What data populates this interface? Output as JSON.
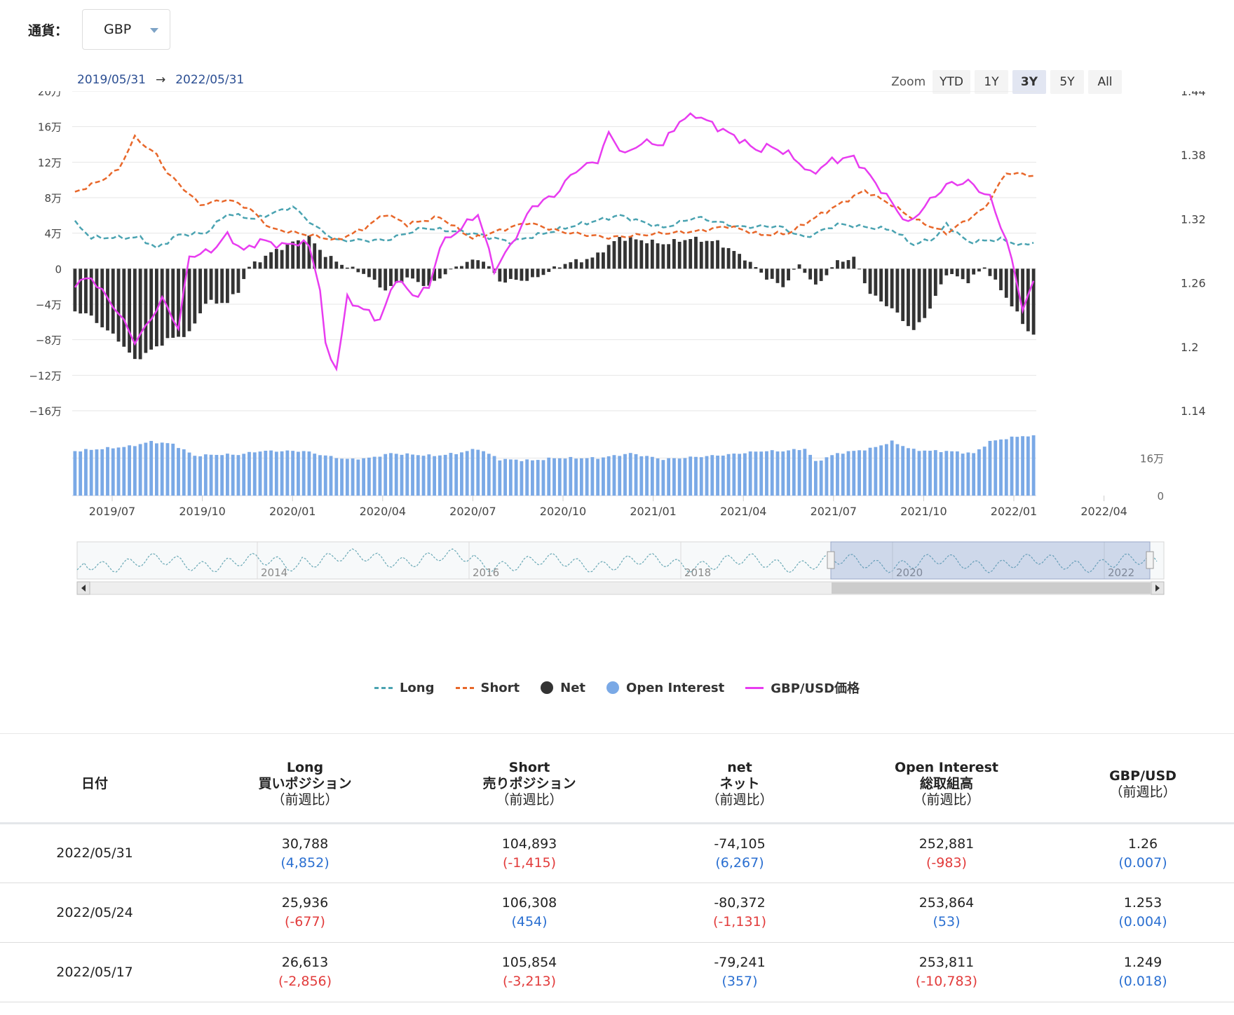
{
  "currency": {
    "label": "通貨：",
    "value": "GBP"
  },
  "range": {
    "from": "2019/05/31",
    "arrow": "→",
    "to": "2022/05/31"
  },
  "zoom": {
    "label": "Zoom",
    "buttons": [
      "YTD",
      "1Y",
      "3Y",
      "5Y",
      "All"
    ],
    "active": "3Y"
  },
  "colors": {
    "long": "#4aa3b1",
    "short": "#e8672a",
    "net": "#333333",
    "oi": "#7aa9e6",
    "price": "#e83cf0"
  },
  "navigator": {
    "years": [
      "2014",
      "2016",
      "2018",
      "2020",
      "2022"
    ]
  },
  "legend": {
    "long": "Long",
    "short": "Short",
    "net": "Net",
    "oi": "Open Interest",
    "price": "GBP/USD価格"
  },
  "chart_data": {
    "type": "line",
    "x_labels": [
      "2019/07",
      "2019/10",
      "2020/01",
      "2020/04",
      "2020/07",
      "2020/10",
      "2021/01",
      "2021/04",
      "2021/07",
      "2021/10",
      "2022/01",
      "2022/04"
    ],
    "left_axis_labels": [
      "20万",
      "16万",
      "12万",
      "8万",
      "4万",
      "0",
      "−4万",
      "−8万",
      "−12万",
      "−16万"
    ],
    "right_axis_labels": [
      "1.44",
      "1.38",
      "1.32",
      "1.26",
      "1.2",
      "1.14"
    ],
    "oi_axis_labels": [
      "16万",
      "0"
    ],
    "ylim_left": [
      -160000,
      200000
    ],
    "ylim_right": [
      1.14,
      1.44
    ],
    "ylim_oi": [
      0,
      320000
    ],
    "long_keypoints": [
      [
        0,
        52000
      ],
      [
        3,
        35000
      ],
      [
        8,
        35000
      ],
      [
        12,
        35000
      ],
      [
        15,
        23000
      ],
      [
        19,
        38000
      ],
      [
        24,
        40000
      ],
      [
        28,
        62000
      ],
      [
        33,
        56000
      ],
      [
        40,
        70000
      ],
      [
        44,
        48000
      ],
      [
        48,
        32000
      ],
      [
        57,
        32000
      ],
      [
        64,
        46000
      ],
      [
        73,
        40000
      ],
      [
        80,
        30000
      ],
      [
        90,
        46000
      ],
      [
        100,
        60000
      ],
      [
        108,
        46000
      ],
      [
        114,
        58000
      ],
      [
        122,
        47000
      ],
      [
        129,
        48000
      ],
      [
        134,
        35000
      ],
      [
        140,
        50000
      ],
      [
        150,
        44000
      ],
      [
        154,
        27000
      ],
      [
        158,
        35000
      ],
      [
        160,
        50000
      ],
      [
        164,
        30000
      ],
      [
        170,
        33000
      ],
      [
        174,
        26000
      ],
      [
        176,
        30000
      ]
    ],
    "short_keypoints": [
      [
        0,
        86000
      ],
      [
        5,
        100000
      ],
      [
        8,
        112000
      ],
      [
        11,
        148000
      ],
      [
        15,
        128000
      ],
      [
        17,
        108000
      ],
      [
        23,
        72000
      ],
      [
        28,
        78000
      ],
      [
        32,
        68000
      ],
      [
        36,
        45000
      ],
      [
        43,
        38000
      ],
      [
        48,
        32000
      ],
      [
        53,
        45000
      ],
      [
        57,
        62000
      ],
      [
        61,
        50000
      ],
      [
        67,
        58000
      ],
      [
        73,
        34000
      ],
      [
        83,
        52000
      ],
      [
        89,
        42000
      ],
      [
        98,
        35000
      ],
      [
        108,
        40000
      ],
      [
        114,
        42000
      ],
      [
        120,
        48000
      ],
      [
        126,
        38000
      ],
      [
        131,
        40000
      ],
      [
        136,
        58000
      ],
      [
        145,
        88000
      ],
      [
        150,
        72000
      ],
      [
        154,
        56000
      ],
      [
        160,
        40000
      ],
      [
        167,
        68000
      ],
      [
        171,
        108000
      ],
      [
        176,
        105000
      ]
    ],
    "net_keypoints": [
      [
        0,
        -48000
      ],
      [
        2,
        -50000
      ],
      [
        8,
        -80000
      ],
      [
        11,
        -103000
      ],
      [
        14,
        -92000
      ],
      [
        17,
        -80000
      ],
      [
        21,
        -73000
      ],
      [
        24,
        -38000
      ],
      [
        28,
        -38000
      ],
      [
        30,
        -25000
      ],
      [
        32,
        2000
      ],
      [
        36,
        18000
      ],
      [
        40,
        30000
      ],
      [
        43,
        35000
      ],
      [
        46,
        15000
      ],
      [
        50,
        2000
      ],
      [
        53,
        -5000
      ],
      [
        57,
        -24000
      ],
      [
        61,
        -10000
      ],
      [
        65,
        -20000
      ],
      [
        68,
        -5000
      ],
      [
        72,
        8000
      ],
      [
        75,
        10000
      ],
      [
        78,
        -14000
      ],
      [
        84,
        -12000
      ],
      [
        90,
        6000
      ],
      [
        95,
        12000
      ],
      [
        100,
        35000
      ],
      [
        104,
        32000
      ],
      [
        108,
        28000
      ],
      [
        113,
        34000
      ],
      [
        118,
        30000
      ],
      [
        123,
        12000
      ],
      [
        127,
        -10000
      ],
      [
        130,
        -20000
      ],
      [
        133,
        5000
      ],
      [
        136,
        -20000
      ],
      [
        140,
        8000
      ],
      [
        143,
        12000
      ],
      [
        146,
        -28000
      ],
      [
        150,
        -45000
      ],
      [
        154,
        -70000
      ],
      [
        157,
        -45000
      ],
      [
        160,
        -5000
      ],
      [
        164,
        -14000
      ],
      [
        167,
        2000
      ],
      [
        171,
        -32000
      ],
      [
        175,
        -70000
      ],
      [
        176,
        -74105
      ]
    ],
    "oi_keypoints": [
      [
        0,
        190000
      ],
      [
        5,
        200000
      ],
      [
        10,
        210000
      ],
      [
        14,
        230000
      ],
      [
        18,
        220000
      ],
      [
        22,
        170000
      ],
      [
        26,
        175000
      ],
      [
        30,
        175000
      ],
      [
        34,
        190000
      ],
      [
        38,
        190000
      ],
      [
        42,
        190000
      ],
      [
        46,
        170000
      ],
      [
        50,
        155000
      ],
      [
        54,
        160000
      ],
      [
        58,
        180000
      ],
      [
        62,
        175000
      ],
      [
        66,
        170000
      ],
      [
        70,
        180000
      ],
      [
        74,
        200000
      ],
      [
        78,
        155000
      ],
      [
        84,
        150000
      ],
      [
        88,
        160000
      ],
      [
        96,
        160000
      ],
      [
        102,
        180000
      ],
      [
        108,
        155000
      ],
      [
        114,
        165000
      ],
      [
        120,
        175000
      ],
      [
        126,
        190000
      ],
      [
        130,
        190000
      ],
      [
        134,
        200000
      ],
      [
        136,
        145000
      ],
      [
        140,
        180000
      ],
      [
        146,
        200000
      ],
      [
        150,
        230000
      ],
      [
        154,
        195000
      ],
      [
        158,
        190000
      ],
      [
        160,
        190000
      ],
      [
        165,
        180000
      ],
      [
        168,
        230000
      ],
      [
        170,
        240000
      ],
      [
        174,
        255000
      ],
      [
        176,
        252881
      ]
    ],
    "price_keypoints": [
      [
        0,
        1.259
      ],
      [
        3,
        1.265
      ],
      [
        8,
        1.232
      ],
      [
        11,
        1.205
      ],
      [
        13,
        1.218
      ],
      [
        16,
        1.245
      ],
      [
        19,
        1.218
      ],
      [
        21,
        1.285
      ],
      [
        25,
        1.29
      ],
      [
        28,
        1.305
      ],
      [
        31,
        1.29
      ],
      [
        34,
        1.3
      ],
      [
        38,
        1.295
      ],
      [
        41,
        1.298
      ],
      [
        43,
        1.295
      ],
      [
        45,
        1.255
      ],
      [
        46,
        1.2
      ],
      [
        48,
        1.18
      ],
      [
        50,
        1.245
      ],
      [
        53,
        1.235
      ],
      [
        56,
        1.225
      ],
      [
        59,
        1.265
      ],
      [
        62,
        1.248
      ],
      [
        65,
        1.255
      ],
      [
        67,
        1.295
      ],
      [
        71,
        1.312
      ],
      [
        74,
        1.325
      ],
      [
        77,
        1.272
      ],
      [
        80,
        1.295
      ],
      [
        84,
        1.332
      ],
      [
        88,
        1.342
      ],
      [
        92,
        1.366
      ],
      [
        96,
        1.375
      ],
      [
        98,
        1.4
      ],
      [
        101,
        1.38
      ],
      [
        104,
        1.392
      ],
      [
        108,
        1.39
      ],
      [
        111,
        1.412
      ],
      [
        114,
        1.418
      ],
      [
        118,
        1.406
      ],
      [
        122,
        1.395
      ],
      [
        125,
        1.385
      ],
      [
        128,
        1.388
      ],
      [
        132,
        1.378
      ],
      [
        135,
        1.362
      ],
      [
        139,
        1.375
      ],
      [
        143,
        1.378
      ],
      [
        146,
        1.36
      ],
      [
        150,
        1.335
      ],
      [
        153,
        1.315
      ],
      [
        156,
        1.332
      ],
      [
        160,
        1.352
      ],
      [
        164,
        1.355
      ],
      [
        168,
        1.34
      ],
      [
        171,
        1.3
      ],
      [
        173,
        1.26
      ],
      [
        174,
        1.235
      ],
      [
        176,
        1.26
      ]
    ],
    "n_weeks": 177,
    "series": [
      {
        "name": "Long",
        "type": "line"
      },
      {
        "name": "Short",
        "type": "line"
      },
      {
        "name": "Net",
        "type": "bar"
      },
      {
        "name": "Open Interest",
        "type": "bar"
      },
      {
        "name": "GBP/USD価格",
        "type": "line"
      }
    ]
  },
  "table": {
    "headers": {
      "date": "日付",
      "long": {
        "line1": "Long",
        "line2": "買いポジション",
        "line3": "（前週比）"
      },
      "short": {
        "line1": "Short",
        "line2": "売りポジション",
        "line3": "（前週比）"
      },
      "net": {
        "line1": "net",
        "line2": "ネット",
        "line3": "（前週比）"
      },
      "oi": {
        "line1": "Open Interest",
        "line2": "総取組高",
        "line3": "（前週比）"
      },
      "price": {
        "line1": "GBP/USD",
        "line2": "（前週比）"
      }
    },
    "rows": [
      {
        "date": "2022/05/31",
        "long": "30,788",
        "long_chg": "(4,852)",
        "long_sign": "pos",
        "short": "104,893",
        "short_chg": "(-1,415)",
        "short_sign": "neg",
        "net": "-74,105",
        "net_chg": "(6,267)",
        "net_sign": "pos",
        "oi": "252,881",
        "oi_chg": "(-983)",
        "oi_sign": "neg",
        "price": "1.26",
        "price_chg": "(0.007)",
        "price_sign": "pos"
      },
      {
        "date": "2022/05/24",
        "long": "25,936",
        "long_chg": "(-677)",
        "long_sign": "neg",
        "short": "106,308",
        "short_chg": "(454)",
        "short_sign": "pos",
        "net": "-80,372",
        "net_chg": "(-1,131)",
        "net_sign": "neg",
        "oi": "253,864",
        "oi_chg": "(53)",
        "oi_sign": "pos",
        "price": "1.253",
        "price_chg": "(0.004)",
        "price_sign": "pos"
      },
      {
        "date": "2022/05/17",
        "long": "26,613",
        "long_chg": "(-2,856)",
        "long_sign": "neg",
        "short": "105,854",
        "short_chg": "(-3,213)",
        "short_sign": "neg",
        "net": "-79,241",
        "net_chg": "(357)",
        "net_sign": "pos",
        "oi": "253,811",
        "oi_chg": "(-10,783)",
        "oi_sign": "neg",
        "price": "1.249",
        "price_chg": "(0.018)",
        "price_sign": "pos"
      }
    ]
  }
}
